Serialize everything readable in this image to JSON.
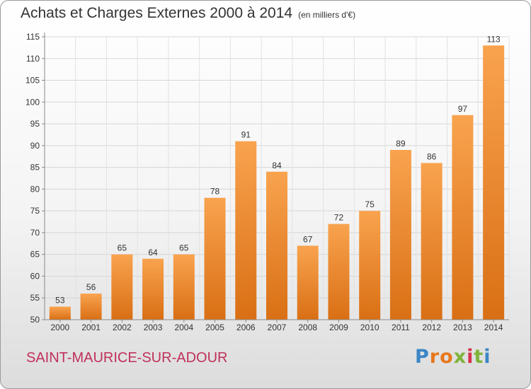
{
  "chart_data": {
    "type": "bar",
    "title": "Achats et Charges Externes 2000 à 2014",
    "subtitle": "(en milliers d'€)",
    "categories": [
      "2000",
      "2001",
      "2002",
      "2003",
      "2004",
      "2005",
      "2006",
      "2007",
      "2008",
      "2009",
      "2010",
      "2011",
      "2012",
      "2013",
      "2014"
    ],
    "values": [
      53,
      56,
      65,
      64,
      65,
      78,
      91,
      84,
      67,
      72,
      75,
      89,
      86,
      97,
      113
    ],
    "ylim": [
      50,
      115
    ],
    "yticks": [
      50,
      55,
      60,
      65,
      70,
      75,
      80,
      85,
      90,
      95,
      100,
      105,
      110,
      115
    ],
    "grid": true,
    "bar_color": "#f0902e",
    "data_labels": true
  },
  "footer": {
    "town": "SAINT-MAURICE-SUR-ADOUR",
    "logo": [
      "P",
      "r",
      "o",
      "x",
      "i",
      "t",
      "i"
    ]
  },
  "colors": {
    "town_text": "#c0305a",
    "bar_top": "#f9a04c",
    "bar_bottom": "#d96f14"
  }
}
